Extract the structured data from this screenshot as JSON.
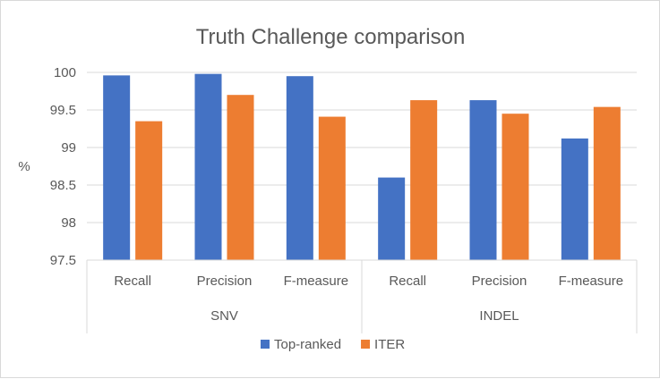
{
  "chart_data": {
    "type": "bar",
    "title": "Truth Challenge comparison",
    "ylabel": "%",
    "xlabel": "",
    "ylim": [
      97.5,
      100
    ],
    "yticks": [
      "100",
      "99.5",
      "99",
      "98.5",
      "98",
      "97.5"
    ],
    "grid": true,
    "legend_position": "bottom",
    "groups": [
      {
        "name": "SNV",
        "categories": [
          "Recall",
          "Precision",
          "F-measure"
        ]
      },
      {
        "name": "INDEL",
        "categories": [
          "Recall",
          "Precision",
          "F-measure"
        ]
      }
    ],
    "series": [
      {
        "name": "Top-ranked",
        "color": "#4472c4",
        "values": [
          99.96,
          99.98,
          99.95,
          98.6,
          99.63,
          99.12
        ]
      },
      {
        "name": "ITER",
        "color": "#ed7d31",
        "values": [
          99.35,
          99.7,
          99.41,
          99.63,
          99.45,
          99.54
        ]
      }
    ],
    "colors": {
      "grid": "#d9d9d9",
      "axis": "#d9d9d9",
      "text": "#595959",
      "frame": "#d9d9d9"
    }
  }
}
